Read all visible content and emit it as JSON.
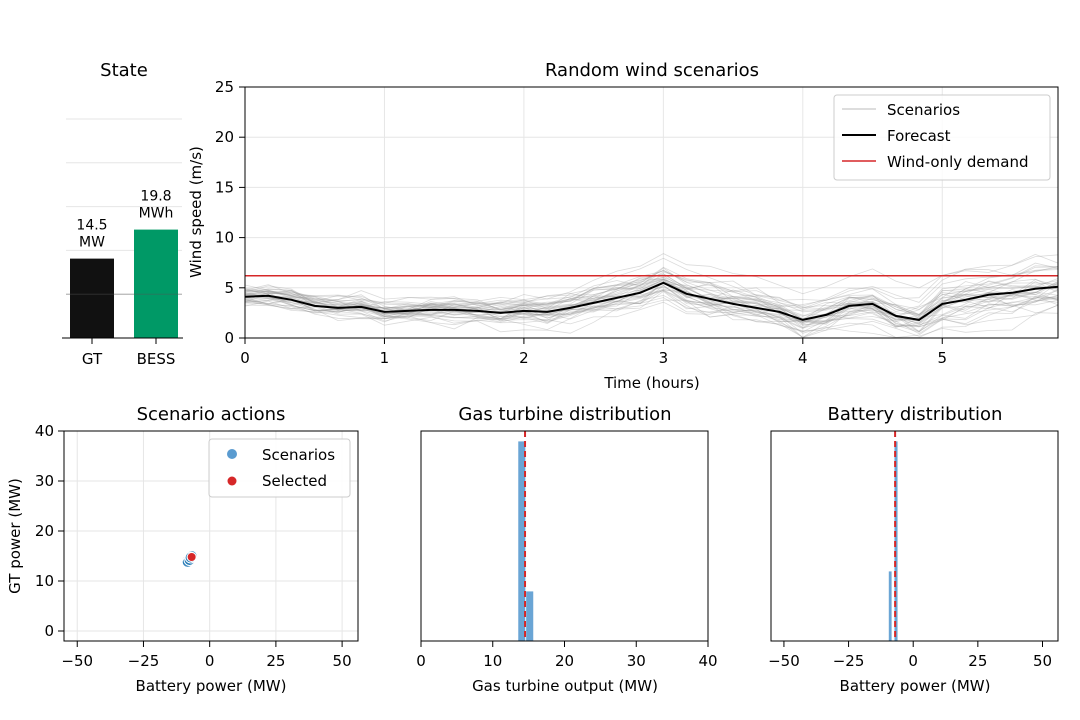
{
  "chart_data": [
    {
      "id": "state",
      "type": "bar",
      "title": "State",
      "categories": [
        "GT",
        "BESS"
      ],
      "values": [
        14.5,
        19.8
      ],
      "ylim": [
        0,
        40
      ],
      "value_labels": [
        [
          "14.5",
          "MW"
        ],
        [
          "19.8",
          "MWh"
        ]
      ],
      "colors": [
        "#111111",
        "#009966"
      ],
      "grid": true
    },
    {
      "id": "wind",
      "type": "line",
      "title": "Random wind scenarios",
      "xlabel": "Time (hours)",
      "ylabel": "Wind speed (m/s)",
      "xlim": [
        0,
        5.83
      ],
      "ylim": [
        0,
        25
      ],
      "xticks": [
        0,
        1,
        2,
        3,
        4,
        5
      ],
      "yticks": [
        0,
        5,
        10,
        15,
        20,
        25
      ],
      "legend_position": "top-right",
      "legend": [
        "Scenarios",
        "Forecast",
        "Wind-only demand"
      ],
      "wind_only_demand": 6.2,
      "x": [
        0,
        0.167,
        0.333,
        0.5,
        0.667,
        0.833,
        1.0,
        1.167,
        1.333,
        1.5,
        1.667,
        1.833,
        2.0,
        2.167,
        2.333,
        2.5,
        2.667,
        2.833,
        3.0,
        3.167,
        3.333,
        3.5,
        3.667,
        3.833,
        4.0,
        4.167,
        4.333,
        4.5,
        4.667,
        4.833,
        5.0,
        5.167,
        5.333,
        5.5,
        5.667,
        5.833
      ],
      "forecast": [
        4.1,
        4.2,
        3.8,
        3.2,
        3.0,
        3.1,
        2.6,
        2.7,
        2.8,
        2.8,
        2.7,
        2.5,
        2.7,
        2.6,
        3.0,
        3.5,
        4.0,
        4.5,
        5.5,
        4.4,
        3.9,
        3.4,
        3.0,
        2.6,
        1.8,
        2.3,
        3.2,
        3.4,
        2.2,
        1.8,
        3.4,
        3.8,
        4.3,
        4.5,
        4.9,
        5.1
      ],
      "scenario_count": 40
    },
    {
      "id": "actions",
      "type": "scatter",
      "title": "Scenario actions",
      "xlabel": "Battery power (MW)",
      "ylabel": "GT power (MW)",
      "xlim": [
        -55,
        56
      ],
      "ylim": [
        -2,
        40
      ],
      "xticks": [
        -50,
        -25,
        0,
        25,
        50
      ],
      "yticks": [
        0,
        10,
        20,
        30,
        40
      ],
      "legend_position": "top-right",
      "legend": [
        "Scenarios",
        "Selected"
      ],
      "series": [
        {
          "name": "Scenarios",
          "points": [
            [
              -8.5,
              14.0
            ],
            [
              -8.3,
              13.8
            ],
            [
              -7.6,
              14.2
            ],
            [
              -6.8,
              15.0
            ],
            [
              -7.2,
              14.7
            ]
          ],
          "color": "#1f77b4"
        },
        {
          "name": "Selected",
          "points": [
            [
              -6.8,
              14.8
            ]
          ],
          "color": "#d62728"
        }
      ]
    },
    {
      "id": "gt_hist",
      "type": "bar",
      "title": "Gas turbine distribution",
      "xlabel": "Gas turbine output (MW)",
      "xlim": [
        0,
        40
      ],
      "xticks": [
        0,
        10,
        20,
        30,
        40
      ],
      "ylim": [
        0,
        42
      ],
      "bins": [
        [
          13.5,
          14.6,
          40
        ],
        [
          14.6,
          15.7,
          10
        ]
      ],
      "selected": 14.5
    },
    {
      "id": "bess_hist",
      "type": "bar",
      "title": "Battery distribution",
      "xlabel": "Battery power (MW)",
      "xlim": [
        -55,
        56
      ],
      "xticks": [
        -50,
        -25,
        0,
        25,
        50
      ],
      "ylim": [
        0,
        42
      ],
      "bins": [
        [
          -9.6,
          -8.2,
          14
        ],
        [
          -7.4,
          -5.9,
          40
        ]
      ],
      "selected": -7.0
    }
  ]
}
